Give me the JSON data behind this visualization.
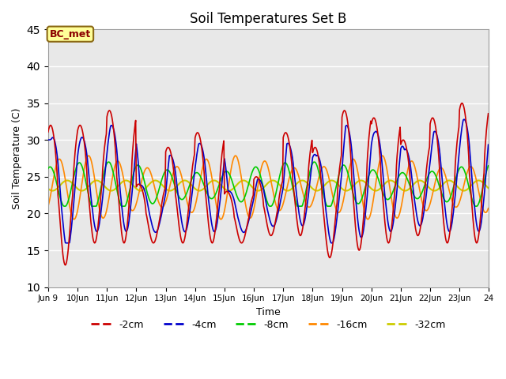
{
  "title": "Soil Temperatures Set B",
  "xlabel": "Time",
  "ylabel": "Soil Temperature (C)",
  "ylim": [
    10,
    45
  ],
  "yticks": [
    10,
    15,
    20,
    25,
    30,
    35,
    40,
    45
  ],
  "annotation_text": "BC_met",
  "annotation_bg": "#FFFF99",
  "annotation_border": "#8B6914",
  "series": {
    "-2cm": {
      "color": "#CC0000",
      "lw": 1.2
    },
    "-4cm": {
      "color": "#0000CC",
      "lw": 1.2
    },
    "-8cm": {
      "color": "#00CC00",
      "lw": 1.2
    },
    "-16cm": {
      "color": "#FF8800",
      "lw": 1.2
    },
    "-32cm": {
      "color": "#CCCC00",
      "lw": 1.5
    }
  },
  "plot_bg": "#E8E8E8"
}
